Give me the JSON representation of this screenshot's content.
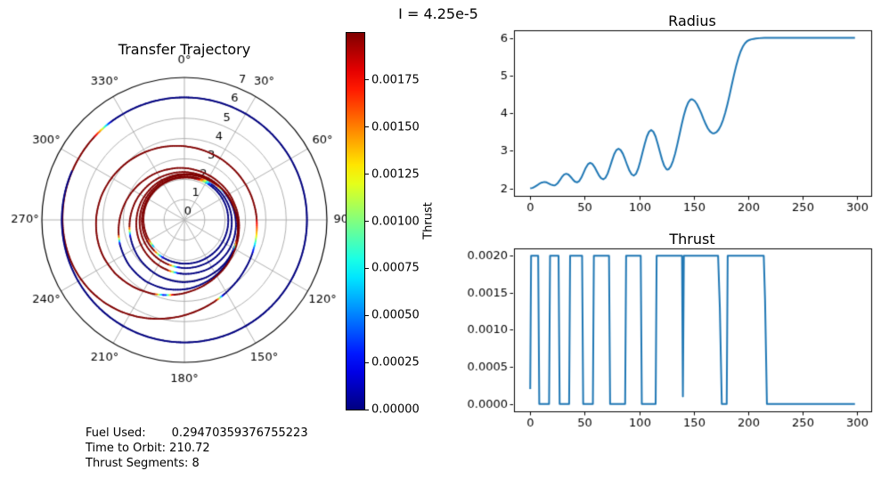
{
  "figure": {
    "suptitle": "I = 4.25e-5",
    "background": "#ffffff"
  },
  "colors": {
    "line": "#1f77b4",
    "grid": "#b0b0b0",
    "spine": "#000000",
    "text": "#000000"
  },
  "info_text": {
    "lines": [
      "Fuel Used:       0.29470359376755223",
      "Time to Orbit: 210.72",
      "Thrust Segments: 8"
    ]
  },
  "chart_data": [
    {
      "id": "trajectory",
      "type": "line-polar",
      "title": "Transfer Trajectory",
      "rlim": [
        0,
        7
      ],
      "radial_ticks": {
        "values": [
          0,
          1,
          2,
          3,
          4,
          5,
          6,
          7
        ],
        "labels": [
          "0",
          "1",
          "2",
          "3",
          "4",
          "5",
          "6",
          "7"
        ],
        "label_angle_deg": 22.5
      },
      "angle_ticks": {
        "values_deg": [
          0,
          30,
          60,
          90,
          120,
          150,
          180,
          210,
          240,
          270,
          300,
          330
        ],
        "labels": [
          "0°",
          "30°",
          "60°",
          "90°",
          "120°",
          "150°",
          "180°",
          "210°",
          "240°",
          "270°",
          "300°",
          "330°"
        ]
      },
      "theta_zero_location": "N",
      "theta_direction": "clockwise",
      "colormap": "jet",
      "color_vmin": 0,
      "color_vmax": 0.002,
      "color_by": "thrust",
      "r_source": "radius-chart",
      "color_source": "thrust-chart",
      "omega_scale": 1.05,
      "theta0_screen_deg": 221
    },
    {
      "id": "thrust-colorbar",
      "type": "colorbar",
      "label": "Thrust",
      "colormap": "jet",
      "vmin": 0,
      "vmax": 0.002,
      "tick_values": [
        0,
        0.00025,
        0.0005,
        0.00075,
        0.001,
        0.00125,
        0.0015,
        0.00175
      ],
      "tick_labels": [
        "0.00000",
        "0.00025",
        "0.00050",
        "0.00075",
        "0.00100",
        "0.00125",
        "0.00150",
        "0.00175"
      ]
    },
    {
      "id": "radius-chart",
      "type": "line",
      "title": "Radius",
      "xlim": [
        -14.9,
        312.9
      ],
      "ylim": [
        1.799,
        6.221
      ],
      "x_ticks": {
        "values": [
          0,
          50,
          100,
          150,
          200,
          250,
          300
        ],
        "labels": [
          "0",
          "50",
          "100",
          "150",
          "200",
          "250",
          "300"
        ]
      },
      "y_ticks": {
        "values": [
          2,
          3,
          4,
          5,
          6
        ],
        "labels": [
          "2",
          "3",
          "4",
          "5",
          "6"
        ]
      },
      "line_color": "#1f77b4",
      "x": [
        0,
        2,
        4,
        6,
        8,
        10,
        13,
        15,
        17,
        19,
        21,
        22,
        23,
        25,
        27,
        29,
        31,
        33,
        35,
        37,
        39,
        41,
        43,
        45,
        47,
        49,
        51,
        53,
        55,
        57,
        59,
        61,
        63,
        65,
        67,
        69,
        71,
        73,
        75,
        77,
        79,
        81,
        83,
        85,
        87,
        89,
        91,
        93,
        95,
        97,
        99,
        101,
        103,
        105,
        107,
        109,
        111,
        113,
        115,
        117,
        119,
        121,
        123,
        125,
        126,
        127,
        129,
        131,
        133,
        135,
        137,
        139,
        141,
        143,
        145,
        147,
        148,
        149,
        151,
        153,
        155,
        157,
        159,
        161,
        163,
        165,
        167,
        168,
        169,
        171,
        173,
        175,
        177,
        179,
        181,
        183,
        185,
        187,
        189,
        191,
        193,
        195,
        197,
        199,
        201,
        203,
        205,
        207,
        210,
        215,
        220,
        240,
        260,
        280,
        298
      ],
      "y": [
        2.0,
        2.01,
        2.04,
        2.075,
        2.115,
        2.15,
        2.17,
        2.16,
        2.13,
        2.1,
        2.083,
        2.08,
        2.086,
        2.13,
        2.21,
        2.3,
        2.365,
        2.39,
        2.37,
        2.31,
        2.24,
        2.18,
        2.16,
        2.195,
        2.29,
        2.42,
        2.55,
        2.645,
        2.68,
        2.65,
        2.57,
        2.46,
        2.35,
        2.27,
        2.24,
        2.28,
        2.39,
        2.56,
        2.74,
        2.91,
        3.02,
        3.06,
        3.02,
        2.925,
        2.78,
        2.62,
        2.475,
        2.376,
        2.34,
        2.386,
        2.52,
        2.72,
        2.95,
        3.18,
        3.38,
        3.51,
        3.56,
        3.51,
        3.385,
        3.19,
        2.975,
        2.765,
        2.6,
        2.512,
        2.5,
        2.51,
        2.585,
        2.73,
        2.93,
        3.175,
        3.44,
        3.705,
        3.95,
        4.15,
        4.295,
        4.37,
        4.38,
        4.374,
        4.33,
        4.247,
        4.13,
        4.0,
        3.854,
        3.718,
        3.6,
        3.52,
        3.475,
        3.47,
        3.47,
        3.5,
        3.57,
        3.68,
        3.83,
        4.02,
        4.25,
        4.5,
        4.77,
        5.03,
        5.27,
        5.48,
        5.65,
        5.78,
        5.87,
        5.93,
        5.96,
        5.98,
        5.99,
        6.0,
        6.01,
        6.02,
        6.02,
        6.02,
        6.02,
        6.02,
        6.02
      ]
    },
    {
      "id": "thrust-chart",
      "type": "line",
      "title": "Thrust",
      "xlim": [
        -14.9,
        312.9
      ],
      "ylim": [
        -0.0001,
        0.0021
      ],
      "x_ticks": {
        "values": [
          0,
          50,
          100,
          150,
          200,
          250,
          300
        ],
        "labels": [
          "0",
          "50",
          "100",
          "150",
          "200",
          "250",
          "300"
        ]
      },
      "y_ticks": {
        "values": [
          0,
          0.0005,
          0.001,
          0.0015,
          0.002
        ],
        "labels": [
          "0.0000",
          "0.0005",
          "0.0010",
          "0.0015",
          "0.0020"
        ]
      },
      "line_color": "#1f77b4",
      "x": [
        0,
        0.8,
        7.3,
        8.3,
        17.3,
        18.2,
        26.0,
        27.0,
        35.7,
        36.6,
        47.6,
        48.6,
        57.5,
        58.4,
        72.3,
        73.3,
        87.1,
        88.0,
        101.4,
        102.4,
        115.1,
        116.0,
        139.3,
        140.1,
        141.0,
        172.4,
        174.0,
        175.8,
        180.3,
        181.2,
        214.3,
        215.5,
        217.2,
        298
      ],
      "y": [
        0.0002,
        0.002,
        0.002,
        0.0,
        0.0,
        0.002,
        0.002,
        0.0,
        0.0,
        0.002,
        0.002,
        0.0,
        0.0,
        0.002,
        0.002,
        0.0,
        0.0,
        0.002,
        0.002,
        0.0,
        0.0,
        0.002,
        0.002,
        0.0001,
        0.002,
        0.002,
        0.0013,
        0.0,
        0.0,
        0.002,
        0.002,
        0.0014,
        0.0,
        0.0
      ]
    }
  ]
}
